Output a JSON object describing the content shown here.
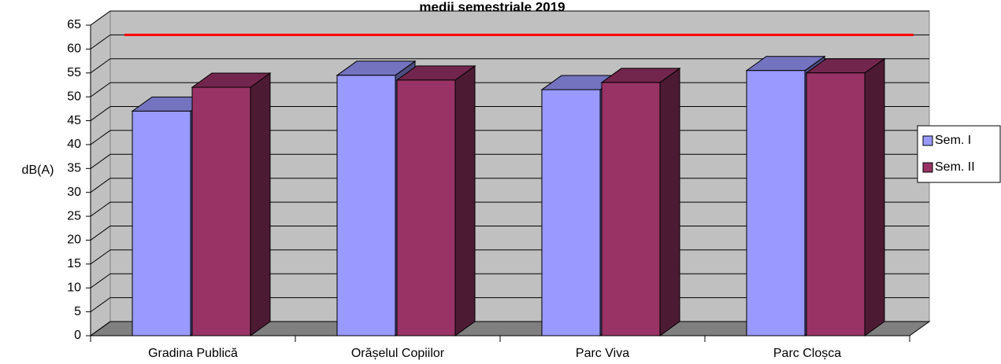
{
  "chart_data": {
    "type": "bar3d",
    "title": "medii semestriale 2019",
    "y_label": "dB(A)",
    "categories": [
      "Gradina Publică",
      "Orășelul Copiilor",
      "Parc Viva",
      "Parc Cloșca"
    ],
    "series": [
      {
        "name": "Sem. I",
        "color": "#9999FF",
        "values": [
          47,
          54.5,
          51.5,
          55.5
        ]
      },
      {
        "name": "Sem. II",
        "color": "#993366",
        "values": [
          52,
          53.5,
          53,
          55
        ]
      }
    ],
    "reference_line": {
      "value": 60,
      "color": "#FF0000"
    },
    "ylim": [
      0,
      65
    ],
    "yticks": [
      0,
      5,
      10,
      15,
      20,
      25,
      30,
      35,
      40,
      45,
      50,
      55,
      60,
      65
    ],
    "grid": true,
    "legend": "right"
  }
}
